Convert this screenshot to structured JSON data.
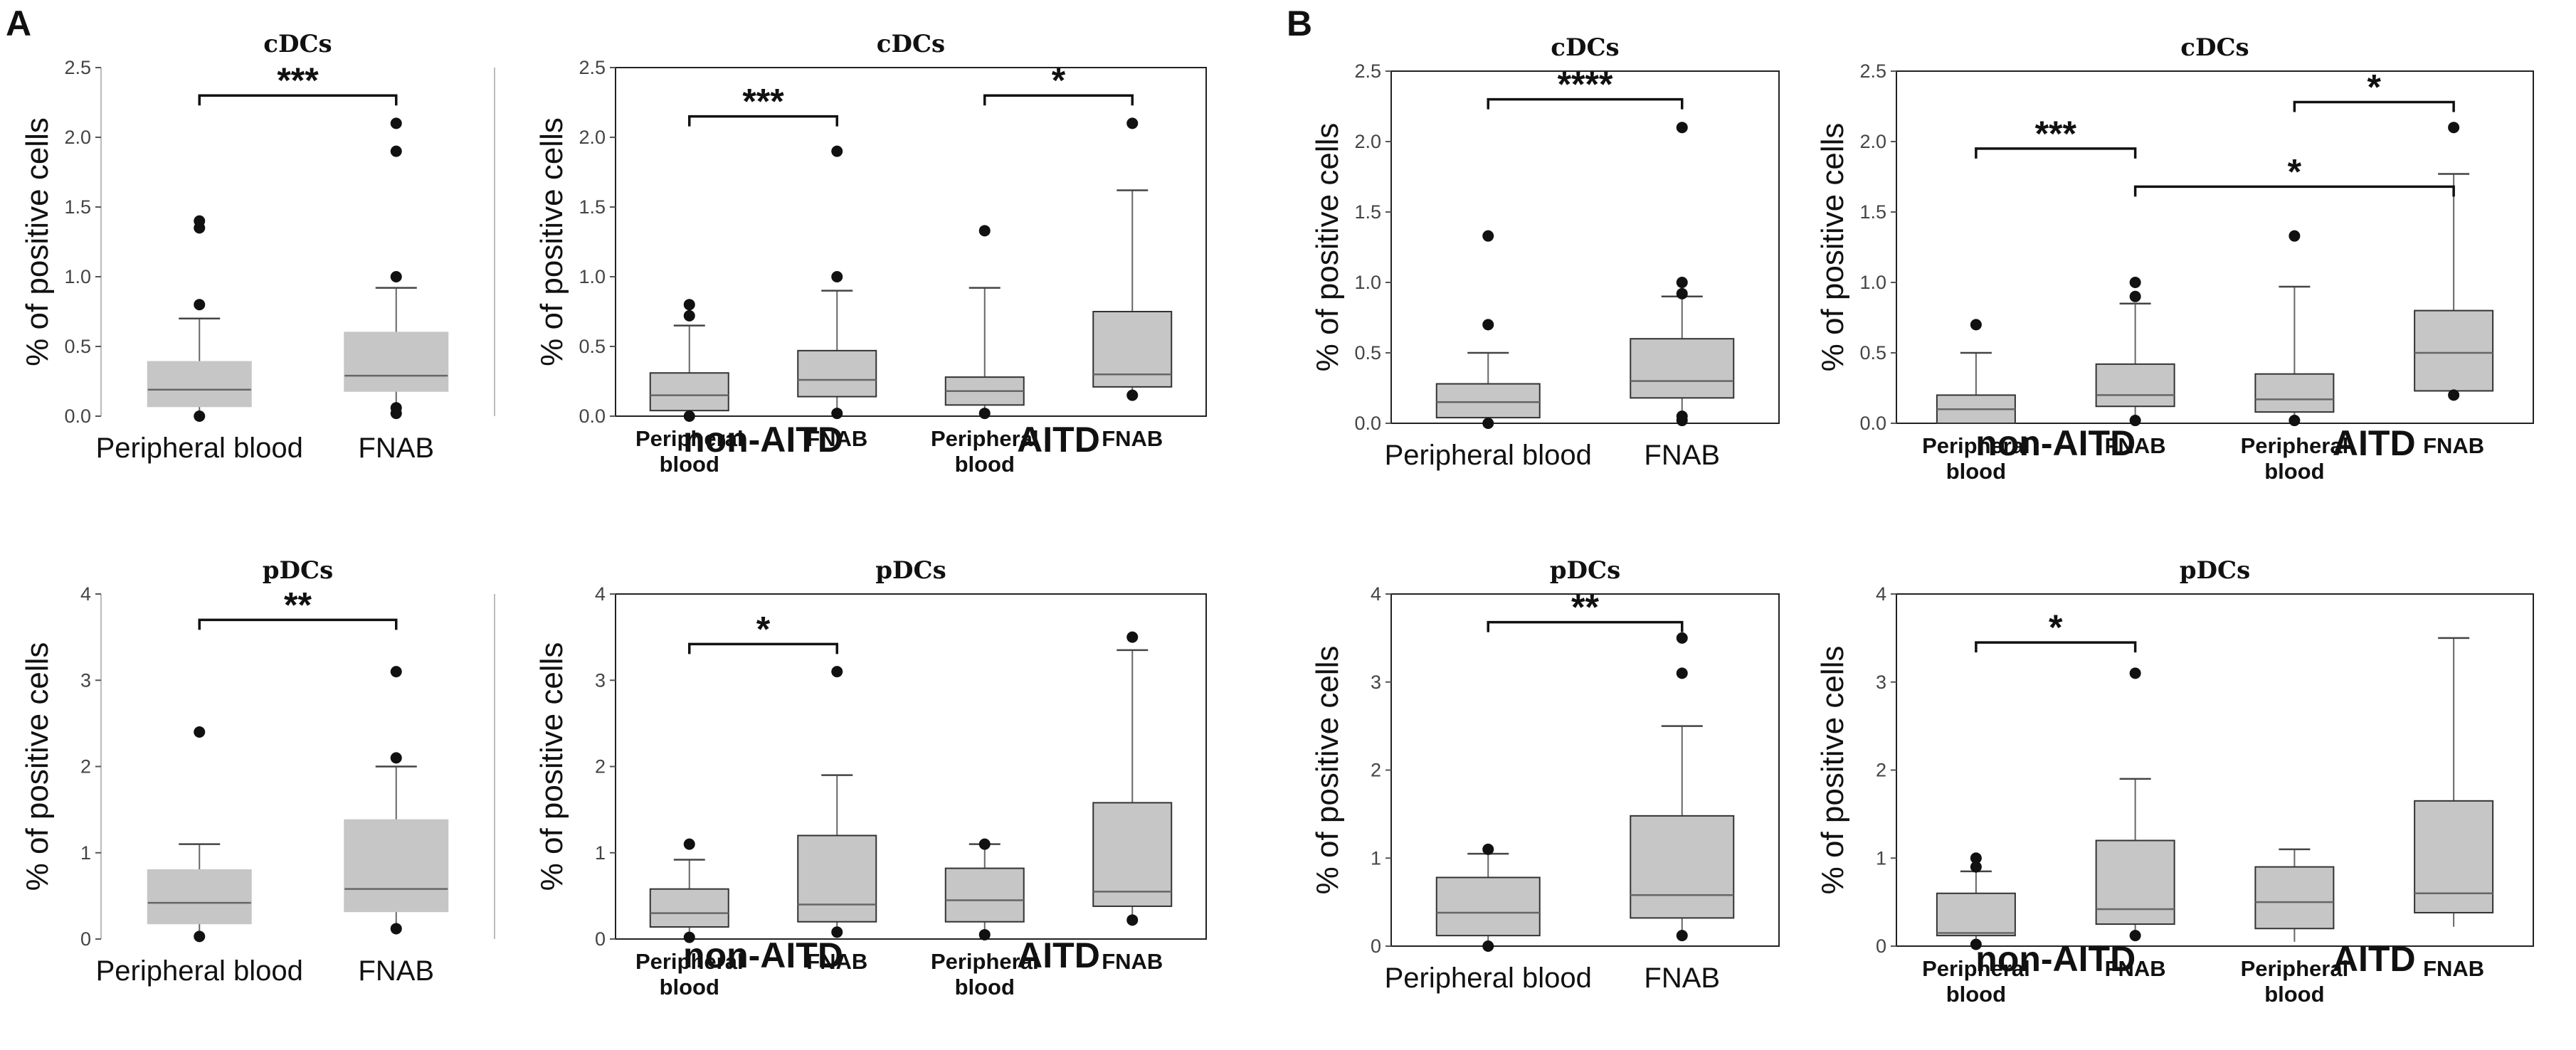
{
  "panel_labels": [
    "A",
    "B"
  ],
  "chart_data": [
    {
      "id": "A1",
      "type": "box",
      "title": "cDCs",
      "ylabel": "% of positive cells",
      "ylim": [
        0,
        2.5
      ],
      "yticks": [
        "0.0",
        "0.5",
        "1.0",
        "1.5",
        "2.0",
        "2.5"
      ],
      "categories": [
        "Peripheral blood",
        "FNAB"
      ],
      "boxes": [
        {
          "q1": 0.07,
          "median": 0.19,
          "q3": 0.39,
          "whisker_low": 0.0,
          "whisker_high": 0.7,
          "outliers": [
            0.0,
            0.8,
            1.35,
            1.4
          ]
        },
        {
          "q1": 0.18,
          "median": 0.29,
          "q3": 0.6,
          "whisker_low": 0.02,
          "whisker_high": 0.92,
          "outliers": [
            0.02,
            0.06,
            1.0,
            1.9,
            2.1
          ]
        }
      ],
      "significance": [
        {
          "from": 0,
          "to": 1,
          "label": "***",
          "y": 2.3
        }
      ]
    },
    {
      "id": "A2",
      "type": "box",
      "title": "cDCs",
      "ylabel": "% of positive cells",
      "ylim": [
        0,
        2.5
      ],
      "yticks": [
        "0.0",
        "0.5",
        "1.0",
        "1.5",
        "2.0",
        "2.5"
      ],
      "categories": [
        "Peripheral\nblood",
        "FNAB",
        "Peripheral\nblood",
        "FNAB"
      ],
      "groups": [
        {
          "label": "non-AITD",
          "span": [
            0,
            1
          ]
        },
        {
          "label": "AITD",
          "span": [
            2,
            3
          ]
        }
      ],
      "boxes": [
        {
          "q1": 0.04,
          "median": 0.15,
          "q3": 0.31,
          "whisker_low": 0.0,
          "whisker_high": 0.65,
          "outliers": [
            0.0,
            0.72,
            0.8
          ]
        },
        {
          "q1": 0.14,
          "median": 0.26,
          "q3": 0.47,
          "whisker_low": 0.02,
          "whisker_high": 0.9,
          "outliers": [
            0.02,
            1.0,
            1.9
          ]
        },
        {
          "q1": 0.08,
          "median": 0.18,
          "q3": 0.28,
          "whisker_low": 0.02,
          "whisker_high": 0.92,
          "outliers": [
            0.02,
            1.33
          ]
        },
        {
          "q1": 0.21,
          "median": 0.3,
          "q3": 0.75,
          "whisker_low": 0.15,
          "whisker_high": 1.62,
          "outliers": [
            0.15,
            2.1
          ]
        }
      ],
      "significance": [
        {
          "from": 0,
          "to": 1,
          "label": "***",
          "y": 2.15
        },
        {
          "from": 2,
          "to": 3,
          "label": "*",
          "y": 2.3
        }
      ]
    },
    {
      "id": "B1",
      "type": "box",
      "title": "cDCs",
      "ylabel": "% of positive cells",
      "ylim": [
        0,
        2.5
      ],
      "yticks": [
        "0.0",
        "0.5",
        "1.0",
        "1.5",
        "2.0",
        "2.5"
      ],
      "categories": [
        "Peripheral blood",
        "FNAB"
      ],
      "boxes": [
        {
          "q1": 0.04,
          "median": 0.15,
          "q3": 0.28,
          "whisker_low": 0.0,
          "whisker_high": 0.5,
          "outliers": [
            0.0,
            0.7,
            1.33
          ]
        },
        {
          "q1": 0.18,
          "median": 0.3,
          "q3": 0.6,
          "whisker_low": 0.02,
          "whisker_high": 0.9,
          "outliers": [
            0.02,
            0.05,
            0.92,
            1.0,
            2.1
          ]
        }
      ],
      "significance": [
        {
          "from": 0,
          "to": 1,
          "label": "****",
          "y": 2.3
        }
      ]
    },
    {
      "id": "B2",
      "type": "box",
      "title": "cDCs",
      "ylabel": "% of positive cells",
      "ylim": [
        0,
        2.5
      ],
      "yticks": [
        "0.0",
        "0.5",
        "1.0",
        "1.5",
        "2.0",
        "2.5"
      ],
      "categories": [
        "Peripheral\nblood",
        "FNAB",
        "Peripheral\nblood",
        "FNAB"
      ],
      "groups": [
        {
          "label": "non-AITD",
          "span": [
            0,
            1
          ]
        },
        {
          "label": "AITD",
          "span": [
            2,
            3
          ]
        }
      ],
      "boxes": [
        {
          "q1": 0.0,
          "median": 0.1,
          "q3": 0.2,
          "whisker_low": 0.0,
          "whisker_high": 0.5,
          "outliers": [
            0.7
          ]
        },
        {
          "q1": 0.12,
          "median": 0.2,
          "q3": 0.42,
          "whisker_low": 0.02,
          "whisker_high": 0.85,
          "outliers": [
            0.02,
            0.9,
            1.0
          ]
        },
        {
          "q1": 0.08,
          "median": 0.17,
          "q3": 0.35,
          "whisker_low": 0.02,
          "whisker_high": 0.97,
          "outliers": [
            0.02,
            1.33
          ]
        },
        {
          "q1": 0.23,
          "median": 0.5,
          "q3": 0.8,
          "whisker_low": 0.2,
          "whisker_high": 1.77,
          "outliers": [
            0.2,
            2.1
          ]
        }
      ],
      "significance": [
        {
          "from": 0,
          "to": 1,
          "label": "***",
          "y": 1.95
        },
        {
          "from": 1,
          "to": 3,
          "label": "*",
          "y": 1.68
        },
        {
          "from": 2,
          "to": 3,
          "label": "*",
          "y": 2.28
        }
      ]
    },
    {
      "id": "A3",
      "type": "box",
      "title": "pDCs",
      "ylabel": "% of positive cells",
      "ylim": [
        0,
        4
      ],
      "yticks": [
        "0",
        "1",
        "2",
        "3",
        "4"
      ],
      "categories": [
        "Peripheral blood",
        "FNAB"
      ],
      "boxes": [
        {
          "q1": 0.18,
          "median": 0.42,
          "q3": 0.8,
          "whisker_low": 0.03,
          "whisker_high": 1.1,
          "outliers": [
            0.03,
            2.4
          ]
        },
        {
          "q1": 0.32,
          "median": 0.58,
          "q3": 1.38,
          "whisker_low": 0.12,
          "whisker_high": 2.0,
          "outliers": [
            0.12,
            2.1,
            3.1
          ]
        }
      ],
      "significance": [
        {
          "from": 0,
          "to": 1,
          "label": "**",
          "y": 3.7
        }
      ]
    },
    {
      "id": "A4",
      "type": "box",
      "title": "pDCs",
      "ylabel": "% of positive cells",
      "ylim": [
        0,
        4
      ],
      "yticks": [
        "0",
        "1",
        "2",
        "3",
        "4"
      ],
      "categories": [
        "Peripheral\nblood",
        "FNAB",
        "Peripheral\nblood",
        "FNAB"
      ],
      "groups": [
        {
          "label": "non-AITD",
          "span": [
            0,
            1
          ]
        },
        {
          "label": "AITD",
          "span": [
            2,
            3
          ]
        }
      ],
      "boxes": [
        {
          "q1": 0.14,
          "median": 0.3,
          "q3": 0.58,
          "whisker_low": 0.02,
          "whisker_high": 0.92,
          "outliers": [
            0.02,
            1.1
          ]
        },
        {
          "q1": 0.2,
          "median": 0.4,
          "q3": 1.2,
          "whisker_low": 0.08,
          "whisker_high": 1.9,
          "outliers": [
            0.08,
            3.1
          ]
        },
        {
          "q1": 0.2,
          "median": 0.45,
          "q3": 0.82,
          "whisker_low": 0.05,
          "whisker_high": 1.1,
          "outliers": [
            0.05,
            1.1
          ]
        },
        {
          "q1": 0.38,
          "median": 0.55,
          "q3": 1.58,
          "whisker_low": 0.22,
          "whisker_high": 3.35,
          "outliers": [
            0.22,
            3.5
          ]
        }
      ],
      "significance": [
        {
          "from": 0,
          "to": 1,
          "label": "*",
          "y": 3.42
        }
      ]
    },
    {
      "id": "B3",
      "type": "box",
      "title": "pDCs",
      "ylabel": "% of positive cells",
      "ylim": [
        0,
        4
      ],
      "yticks": [
        "0",
        "1",
        "2",
        "3",
        "4"
      ],
      "categories": [
        "Peripheral blood",
        "FNAB"
      ],
      "boxes": [
        {
          "q1": 0.12,
          "median": 0.38,
          "q3": 0.78,
          "whisker_low": 0.0,
          "whisker_high": 1.05,
          "outliers": [
            0.0,
            1.1
          ]
        },
        {
          "q1": 0.32,
          "median": 0.58,
          "q3": 1.48,
          "whisker_low": 0.12,
          "whisker_high": 2.5,
          "outliers": [
            0.12,
            3.1,
            3.5
          ]
        }
      ],
      "significance": [
        {
          "from": 0,
          "to": 1,
          "label": "**",
          "y": 3.68
        }
      ]
    },
    {
      "id": "B4",
      "type": "box",
      "title": "pDCs",
      "ylabel": "% of positive cells",
      "ylim": [
        0,
        4
      ],
      "yticks": [
        "0",
        "1",
        "2",
        "3",
        "4"
      ],
      "categories": [
        "Peripheral\nblood",
        "FNAB",
        "Peripheral\nblood",
        "FNAB"
      ],
      "groups": [
        {
          "label": "non-AITD",
          "span": [
            0,
            1
          ]
        },
        {
          "label": "AITD",
          "span": [
            2,
            3
          ]
        }
      ],
      "boxes": [
        {
          "q1": 0.12,
          "median": 0.15,
          "q3": 0.6,
          "whisker_low": 0.02,
          "whisker_high": 0.85,
          "outliers": [
            0.02,
            0.9,
            1.0
          ]
        },
        {
          "q1": 0.25,
          "median": 0.42,
          "q3": 1.2,
          "whisker_low": 0.12,
          "whisker_high": 1.9,
          "outliers": [
            0.12,
            3.1
          ]
        },
        {
          "q1": 0.2,
          "median": 0.5,
          "q3": 0.9,
          "whisker_low": 0.05,
          "whisker_high": 1.1,
          "outliers": []
        },
        {
          "q1": 0.38,
          "median": 0.6,
          "q3": 1.65,
          "whisker_low": 0.22,
          "whisker_high": 3.5,
          "outliers": []
        }
      ],
      "significance": [
        {
          "from": 0,
          "to": 1,
          "label": "*",
          "y": 3.45
        }
      ]
    }
  ]
}
